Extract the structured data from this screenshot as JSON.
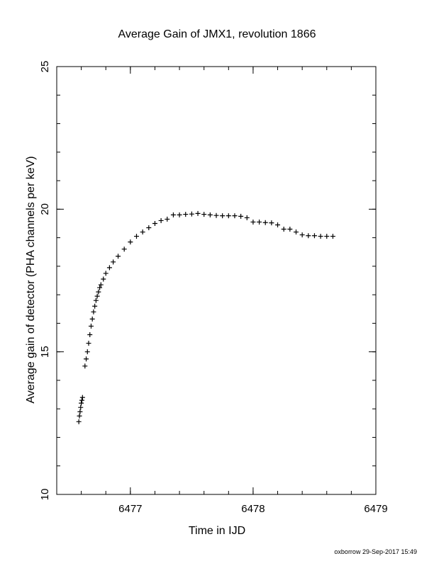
{
  "chart_data": {
    "type": "scatter",
    "title": "Average Gain of JMX1, revolution 1866",
    "xlabel": "Time in IJD",
    "ylabel": "Average gain of detector (PHA channels per keV)",
    "xlim": [
      6476.4,
      6479
    ],
    "ylim": [
      10,
      25
    ],
    "x_ticks": [
      6477,
      6478,
      6479
    ],
    "y_ticks": [
      10,
      15,
      20,
      25
    ],
    "x_minor_step": 0.2,
    "y_minor_step": 1,
    "grid": false,
    "marker": "+",
    "series": [
      {
        "x": [
          6476.58,
          6476.585,
          6476.59,
          6476.595,
          6476.6,
          6476.605,
          6476.61,
          6476.63,
          6476.64,
          6476.65,
          6476.66,
          6476.67,
          6476.68,
          6476.69,
          6476.7,
          6476.71,
          6476.72,
          6476.73,
          6476.74,
          6476.75,
          6476.76,
          6476.78,
          6476.8,
          6476.83,
          6476.86,
          6476.9,
          6476.95,
          6477.0,
          6477.05,
          6477.1,
          6477.15,
          6477.2,
          6477.25,
          6477.3,
          6477.35,
          6477.4,
          6477.45,
          6477.5,
          6477.55,
          6477.6,
          6477.65,
          6477.7,
          6477.75,
          6477.8,
          6477.85,
          6477.9,
          6477.95,
          6478.0,
          6478.05,
          6478.1,
          6478.15,
          6478.2,
          6478.25,
          6478.3,
          6478.35,
          6478.4,
          6478.45,
          6478.5,
          6478.55,
          6478.6,
          6478.65
        ],
        "y": [
          12.55,
          12.75,
          12.9,
          13.05,
          13.2,
          13.3,
          13.4,
          14.5,
          14.75,
          15.0,
          15.3,
          15.6,
          15.9,
          16.15,
          16.4,
          16.6,
          16.8,
          16.95,
          17.1,
          17.25,
          17.35,
          17.55,
          17.75,
          17.95,
          18.15,
          18.35,
          18.6,
          18.85,
          19.05,
          19.2,
          19.35,
          19.5,
          19.6,
          19.65,
          19.8,
          19.8,
          19.82,
          19.83,
          19.85,
          19.82,
          19.8,
          19.78,
          19.77,
          19.77,
          19.77,
          19.75,
          19.7,
          19.55,
          19.55,
          19.53,
          19.52,
          19.45,
          19.3,
          19.3,
          19.2,
          19.1,
          19.07,
          19.07,
          19.05,
          19.05,
          19.05
        ]
      }
    ]
  },
  "footer": "oxborrow 29-Sep-2017 15:49"
}
